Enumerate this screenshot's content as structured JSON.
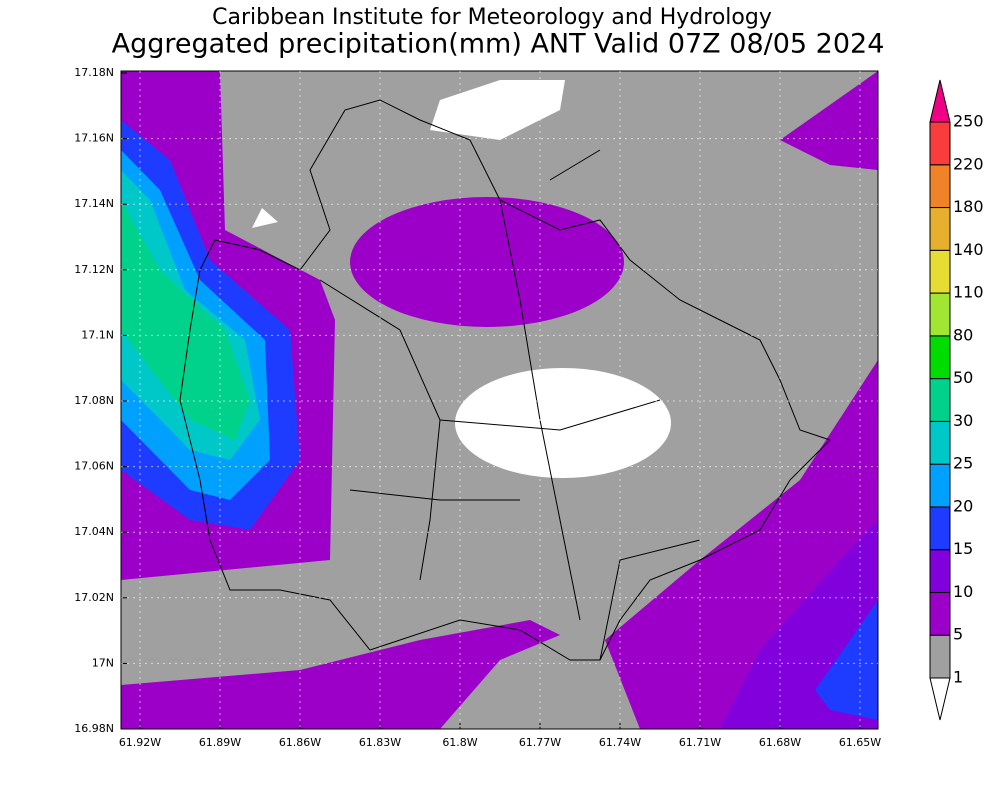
{
  "header": {
    "title": "Caribbean Institute for Meteorology and Hydrology",
    "subtitle": "Aggregated precipitation(mm) ANT Valid 07Z 08/05 2024"
  },
  "y_axis": {
    "ticks": [
      "17.18N",
      "17.16N",
      "17.14N",
      "17.12N",
      "17.1N",
      "17.08N",
      "17.06N",
      "17.04N",
      "17.02N",
      "17N",
      "16.98N"
    ]
  },
  "x_axis": {
    "ticks": [
      "61.92W",
      "61.89W",
      "61.86W",
      "61.83W",
      "61.8W",
      "61.77W",
      "61.74W",
      "61.71W",
      "61.68W",
      "61.65W"
    ]
  },
  "legend": {
    "levels": [
      1,
      5,
      10,
      15,
      20,
      25,
      30,
      50,
      80,
      110,
      140,
      180,
      220,
      250
    ],
    "colors": [
      "#ffffff",
      "#a0a0a0",
      "#9c00c8",
      "#8200dc",
      "#1e3cff",
      "#00a0ff",
      "#00c8c8",
      "#00d28c",
      "#00dc00",
      "#a0e632",
      "#e6dc32",
      "#e6af2d",
      "#f08228",
      "#fa3c3c",
      "#f00082"
    ]
  }
}
